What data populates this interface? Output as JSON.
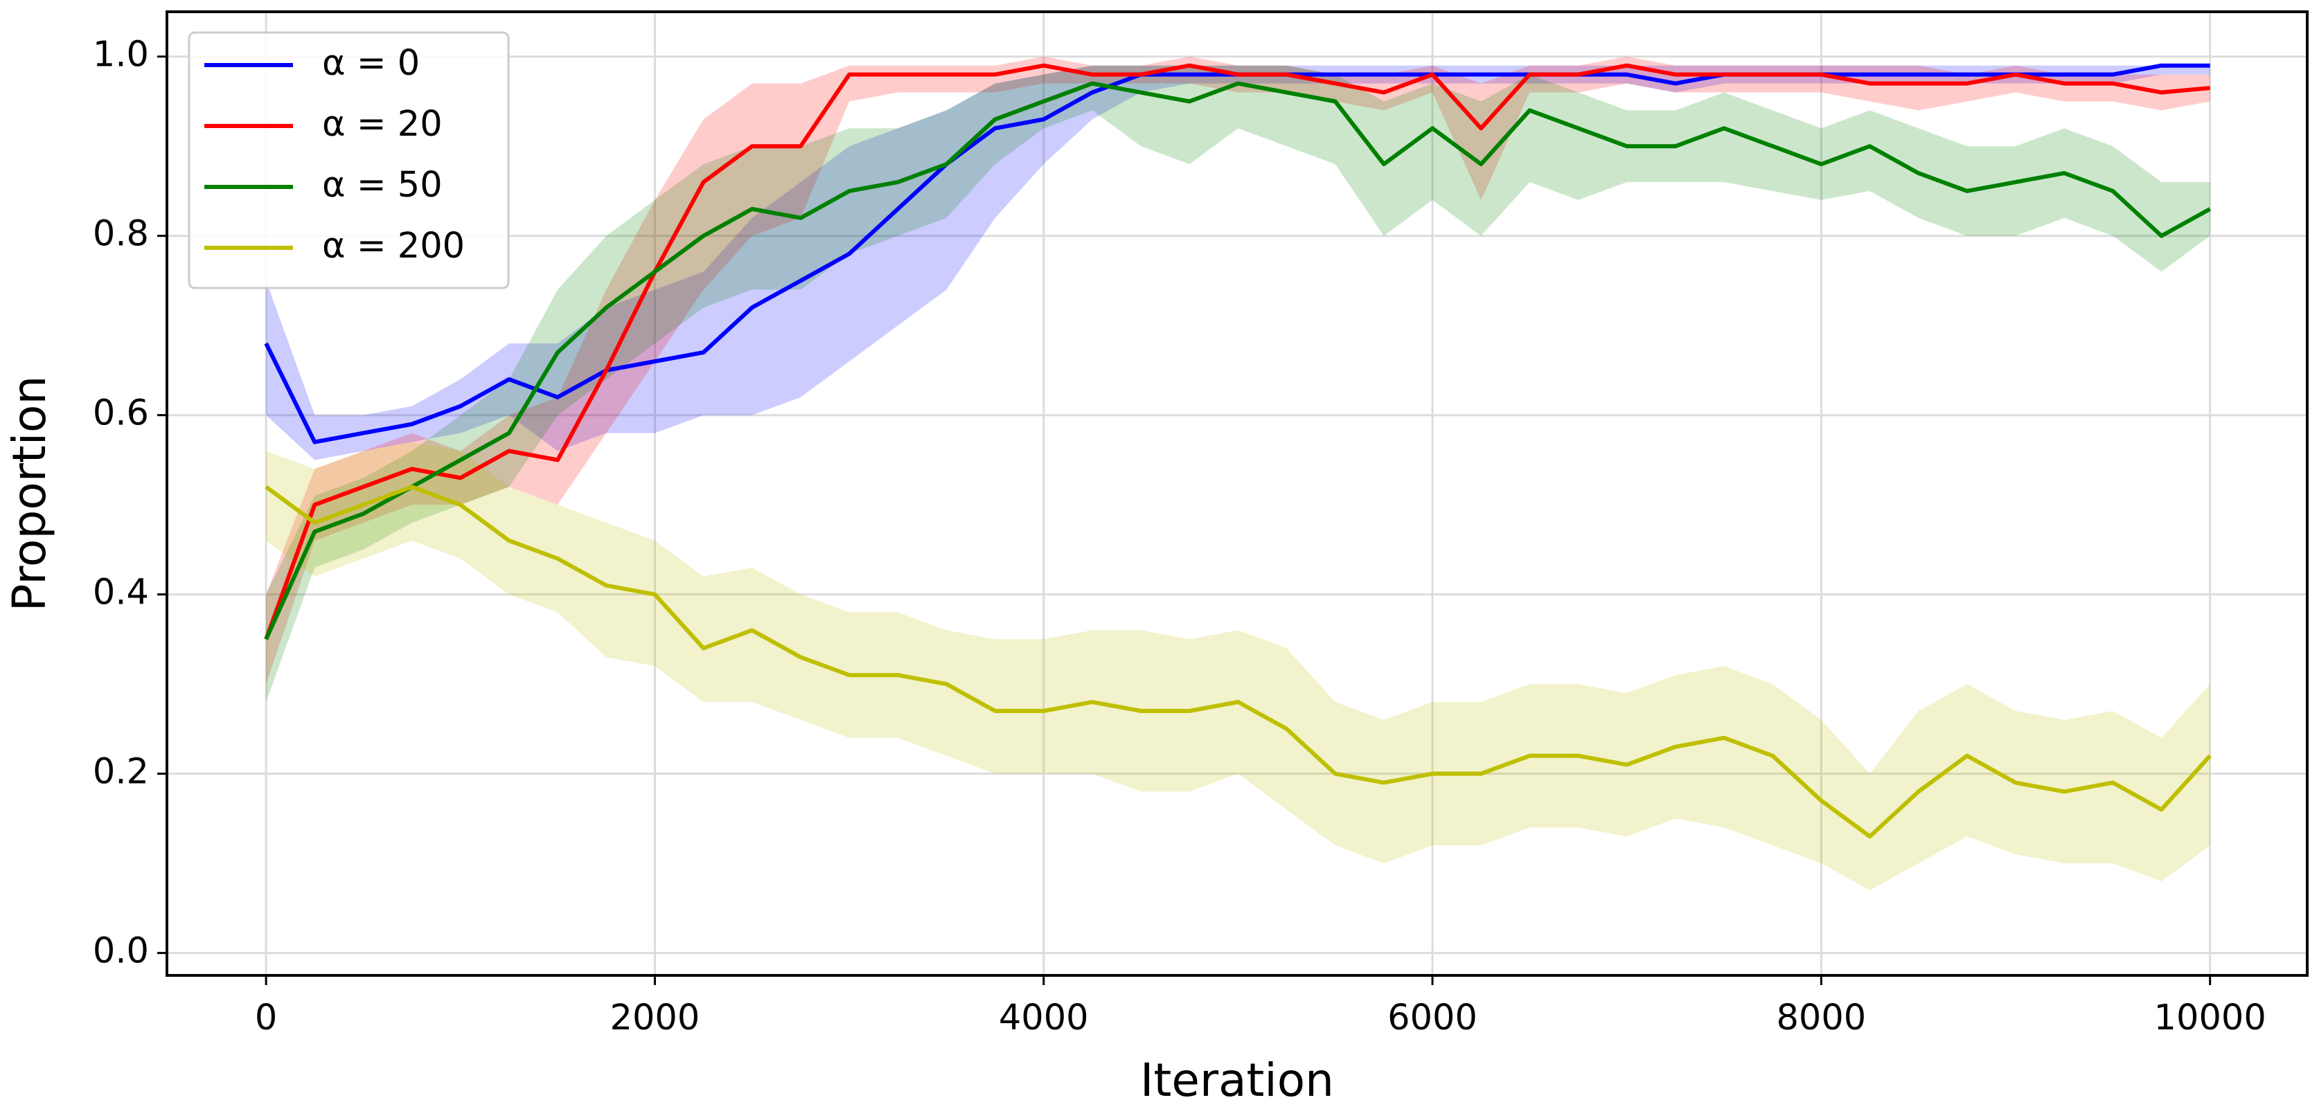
{
  "chart_data": {
    "type": "line",
    "x_label": "Iteration",
    "y_label": "Proportion",
    "x": [
      0,
      250,
      500,
      750,
      1000,
      1250,
      1500,
      1750,
      2000,
      2250,
      2500,
      2750,
      3000,
      3250,
      3500,
      3750,
      4000,
      4250,
      4500,
      4750,
      5000,
      5250,
      5500,
      5750,
      6000,
      6250,
      6500,
      6750,
      7000,
      7250,
      7500,
      7750,
      8000,
      8250,
      8500,
      8750,
      9000,
      9250,
      9500,
      9750,
      10000
    ],
    "series": [
      {
        "name": "α = 0",
        "color": "#0000ff",
        "values": [
          0.68,
          0.57,
          0.58,
          0.59,
          0.61,
          0.64,
          0.62,
          0.65,
          0.66,
          0.67,
          0.72,
          0.75,
          0.78,
          0.83,
          0.88,
          0.92,
          0.93,
          0.96,
          0.98,
          0.98,
          0.98,
          0.98,
          0.98,
          0.98,
          0.98,
          0.98,
          0.98,
          0.98,
          0.98,
          0.97,
          0.98,
          0.98,
          0.98,
          0.98,
          0.98,
          0.98,
          0.98,
          0.98,
          0.98,
          0.99,
          0.99
        ],
        "lower": [
          0.6,
          0.55,
          0.56,
          0.57,
          0.58,
          0.6,
          0.56,
          0.58,
          0.58,
          0.6,
          0.6,
          0.62,
          0.66,
          0.7,
          0.74,
          0.82,
          0.88,
          0.93,
          0.96,
          0.97,
          0.97,
          0.97,
          0.97,
          0.97,
          0.97,
          0.97,
          0.97,
          0.97,
          0.97,
          0.96,
          0.97,
          0.97,
          0.97,
          0.97,
          0.97,
          0.97,
          0.97,
          0.97,
          0.97,
          0.98,
          0.98
        ],
        "upper": [
          0.75,
          0.6,
          0.6,
          0.61,
          0.64,
          0.68,
          0.68,
          0.72,
          0.74,
          0.76,
          0.82,
          0.86,
          0.9,
          0.92,
          0.94,
          0.97,
          0.98,
          0.99,
          0.99,
          0.99,
          0.99,
          0.99,
          0.99,
          0.99,
          0.99,
          0.99,
          0.99,
          0.99,
          0.99,
          0.99,
          0.99,
          0.99,
          0.99,
          0.99,
          0.99,
          0.99,
          0.99,
          0.99,
          0.99,
          0.99,
          0.99
        ]
      },
      {
        "name": "α = 20",
        "color": "#ff0000",
        "values": [
          0.35,
          0.5,
          0.52,
          0.54,
          0.53,
          0.56,
          0.55,
          0.65,
          0.76,
          0.86,
          0.9,
          0.9,
          0.98,
          0.98,
          0.98,
          0.98,
          0.99,
          0.98,
          0.98,
          0.99,
          0.98,
          0.98,
          0.97,
          0.96,
          0.98,
          0.92,
          0.98,
          0.98,
          0.99,
          0.98,
          0.98,
          0.98,
          0.98,
          0.97,
          0.97,
          0.97,
          0.98,
          0.97,
          0.97,
          0.96,
          0.965
        ],
        "lower": [
          0.3,
          0.46,
          0.48,
          0.5,
          0.5,
          0.52,
          0.5,
          0.58,
          0.66,
          0.74,
          0.8,
          0.82,
          0.95,
          0.96,
          0.96,
          0.96,
          0.97,
          0.97,
          0.97,
          0.97,
          0.96,
          0.96,
          0.95,
          0.94,
          0.96,
          0.84,
          0.96,
          0.96,
          0.97,
          0.96,
          0.96,
          0.96,
          0.96,
          0.95,
          0.94,
          0.95,
          0.96,
          0.95,
          0.95,
          0.94,
          0.95
        ],
        "upper": [
          0.4,
          0.54,
          0.56,
          0.58,
          0.56,
          0.6,
          0.62,
          0.74,
          0.84,
          0.93,
          0.97,
          0.97,
          0.99,
          0.99,
          0.99,
          0.99,
          1.0,
          0.99,
          0.99,
          1.0,
          0.99,
          0.99,
          0.98,
          0.98,
          0.99,
          0.97,
          0.99,
          0.99,
          1.0,
          0.99,
          0.99,
          0.99,
          0.99,
          0.99,
          0.99,
          0.98,
          0.99,
          0.98,
          0.98,
          0.98,
          0.98
        ]
      },
      {
        "name": "α = 50",
        "color": "#008000",
        "values": [
          0.35,
          0.47,
          0.49,
          0.52,
          0.55,
          0.58,
          0.67,
          0.72,
          0.76,
          0.8,
          0.83,
          0.82,
          0.85,
          0.86,
          0.88,
          0.93,
          0.95,
          0.97,
          0.96,
          0.95,
          0.97,
          0.96,
          0.95,
          0.88,
          0.92,
          0.88,
          0.94,
          0.92,
          0.9,
          0.9,
          0.92,
          0.9,
          0.88,
          0.9,
          0.87,
          0.85,
          0.86,
          0.87,
          0.85,
          0.8,
          0.83
        ],
        "lower": [
          0.28,
          0.43,
          0.45,
          0.48,
          0.5,
          0.52,
          0.6,
          0.64,
          0.68,
          0.72,
          0.74,
          0.74,
          0.78,
          0.8,
          0.82,
          0.88,
          0.92,
          0.94,
          0.9,
          0.88,
          0.92,
          0.9,
          0.88,
          0.8,
          0.84,
          0.8,
          0.86,
          0.84,
          0.86,
          0.86,
          0.86,
          0.85,
          0.84,
          0.85,
          0.82,
          0.8,
          0.8,
          0.82,
          0.8,
          0.76,
          0.8
        ],
        "upper": [
          0.4,
          0.51,
          0.53,
          0.56,
          0.6,
          0.64,
          0.74,
          0.8,
          0.84,
          0.88,
          0.9,
          0.9,
          0.92,
          0.92,
          0.94,
          0.97,
          0.98,
          0.99,
          0.99,
          0.99,
          0.99,
          0.99,
          0.98,
          0.95,
          0.97,
          0.95,
          0.98,
          0.96,
          0.94,
          0.94,
          0.96,
          0.94,
          0.92,
          0.94,
          0.92,
          0.9,
          0.9,
          0.92,
          0.9,
          0.86,
          0.86
        ]
      },
      {
        "name": "α = 200",
        "color": "#bfbf00",
        "values": [
          0.52,
          0.48,
          0.5,
          0.52,
          0.5,
          0.46,
          0.44,
          0.41,
          0.4,
          0.34,
          0.36,
          0.33,
          0.31,
          0.31,
          0.3,
          0.27,
          0.27,
          0.28,
          0.27,
          0.27,
          0.28,
          0.25,
          0.2,
          0.19,
          0.2,
          0.2,
          0.22,
          0.22,
          0.21,
          0.23,
          0.24,
          0.22,
          0.17,
          0.13,
          0.18,
          0.22,
          0.19,
          0.18,
          0.19,
          0.16,
          0.22
        ],
        "lower": [
          0.46,
          0.42,
          0.44,
          0.46,
          0.44,
          0.4,
          0.38,
          0.33,
          0.32,
          0.28,
          0.28,
          0.26,
          0.24,
          0.24,
          0.22,
          0.2,
          0.2,
          0.2,
          0.18,
          0.18,
          0.2,
          0.16,
          0.12,
          0.1,
          0.12,
          0.12,
          0.14,
          0.14,
          0.13,
          0.15,
          0.14,
          0.12,
          0.1,
          0.07,
          0.1,
          0.13,
          0.11,
          0.1,
          0.1,
          0.08,
          0.12
        ],
        "upper": [
          0.56,
          0.54,
          0.56,
          0.57,
          0.56,
          0.52,
          0.5,
          0.48,
          0.46,
          0.42,
          0.43,
          0.4,
          0.38,
          0.38,
          0.36,
          0.35,
          0.35,
          0.36,
          0.36,
          0.35,
          0.36,
          0.34,
          0.28,
          0.26,
          0.28,
          0.28,
          0.3,
          0.3,
          0.29,
          0.31,
          0.32,
          0.3,
          0.26,
          0.2,
          0.27,
          0.3,
          0.27,
          0.26,
          0.27,
          0.24,
          0.3
        ]
      }
    ],
    "xlim": [
      -510,
      10500
    ],
    "ylim": [
      -0.025,
      1.05
    ],
    "xticks": [
      0,
      2000,
      4000,
      6000,
      8000,
      10000
    ],
    "yticks": [
      {
        "value": 0,
        "label": "0.0"
      },
      0.2,
      0.4,
      0.6,
      0.8,
      {
        "value": 1,
        "label": "1.0"
      }
    ],
    "grid": true,
    "legend": "upper left"
  }
}
